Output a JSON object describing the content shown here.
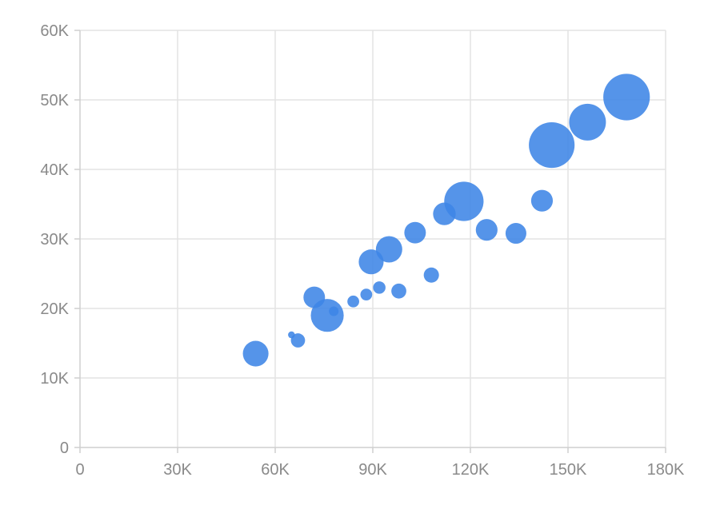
{
  "chart_data": {
    "type": "scatter",
    "variant": "bubble",
    "title": "",
    "xlabel": "",
    "ylabel": "",
    "xlim": [
      0,
      180000
    ],
    "ylim": [
      0,
      60000
    ],
    "grid": true,
    "legend": "none",
    "colors": {
      "bubble": "#3d85e6",
      "grid": "#e3e3e3",
      "axis": "#cfcfcf",
      "tick_text": "#8a8a8a"
    },
    "x_ticks": [
      {
        "value": 0,
        "label": "0"
      },
      {
        "value": 30000,
        "label": "30K"
      },
      {
        "value": 60000,
        "label": "60K"
      },
      {
        "value": 90000,
        "label": "90K"
      },
      {
        "value": 120000,
        "label": "120K"
      },
      {
        "value": 150000,
        "label": "150K"
      },
      {
        "value": 180000,
        "label": "180K"
      }
    ],
    "y_ticks": [
      {
        "value": 0,
        "label": "0"
      },
      {
        "value": 10000,
        "label": "10K"
      },
      {
        "value": 20000,
        "label": "20K"
      },
      {
        "value": 30000,
        "label": "30K"
      },
      {
        "value": 40000,
        "label": "40K"
      },
      {
        "value": 50000,
        "label": "50K"
      },
      {
        "value": 60000,
        "label": "60K"
      }
    ],
    "series": [
      {
        "points": [
          {
            "x": 54000,
            "y": 13500,
            "size": 8.5
          },
          {
            "x": 65000,
            "y": 16200,
            "size": 0.6
          },
          {
            "x": 67000,
            "y": 15400,
            "size": 2.6
          },
          {
            "x": 72000,
            "y": 21600,
            "size": 6.0
          },
          {
            "x": 76000,
            "y": 19000,
            "size": 14.0
          },
          {
            "x": 78000,
            "y": 19600,
            "size": 1.2
          },
          {
            "x": 84000,
            "y": 21000,
            "size": 1.8
          },
          {
            "x": 88000,
            "y": 22000,
            "size": 1.8
          },
          {
            "x": 89500,
            "y": 26700,
            "size": 8.0
          },
          {
            "x": 92000,
            "y": 23000,
            "size": 2.0
          },
          {
            "x": 95000,
            "y": 28500,
            "size": 9.0
          },
          {
            "x": 98000,
            "y": 22500,
            "size": 2.9
          },
          {
            "x": 103000,
            "y": 30900,
            "size": 6.0
          },
          {
            "x": 108000,
            "y": 24800,
            "size": 3.0
          },
          {
            "x": 112000,
            "y": 33600,
            "size": 6.6
          },
          {
            "x": 118000,
            "y": 35400,
            "size": 20.0
          },
          {
            "x": 125000,
            "y": 31300,
            "size": 6.1
          },
          {
            "x": 134000,
            "y": 30800,
            "size": 5.6
          },
          {
            "x": 142000,
            "y": 35500,
            "size": 6.1
          },
          {
            "x": 145000,
            "y": 43500,
            "size": 27.0
          },
          {
            "x": 156000,
            "y": 46800,
            "size": 17.5
          },
          {
            "x": 168000,
            "y": 50400,
            "size": 28.0
          }
        ]
      }
    ]
  }
}
